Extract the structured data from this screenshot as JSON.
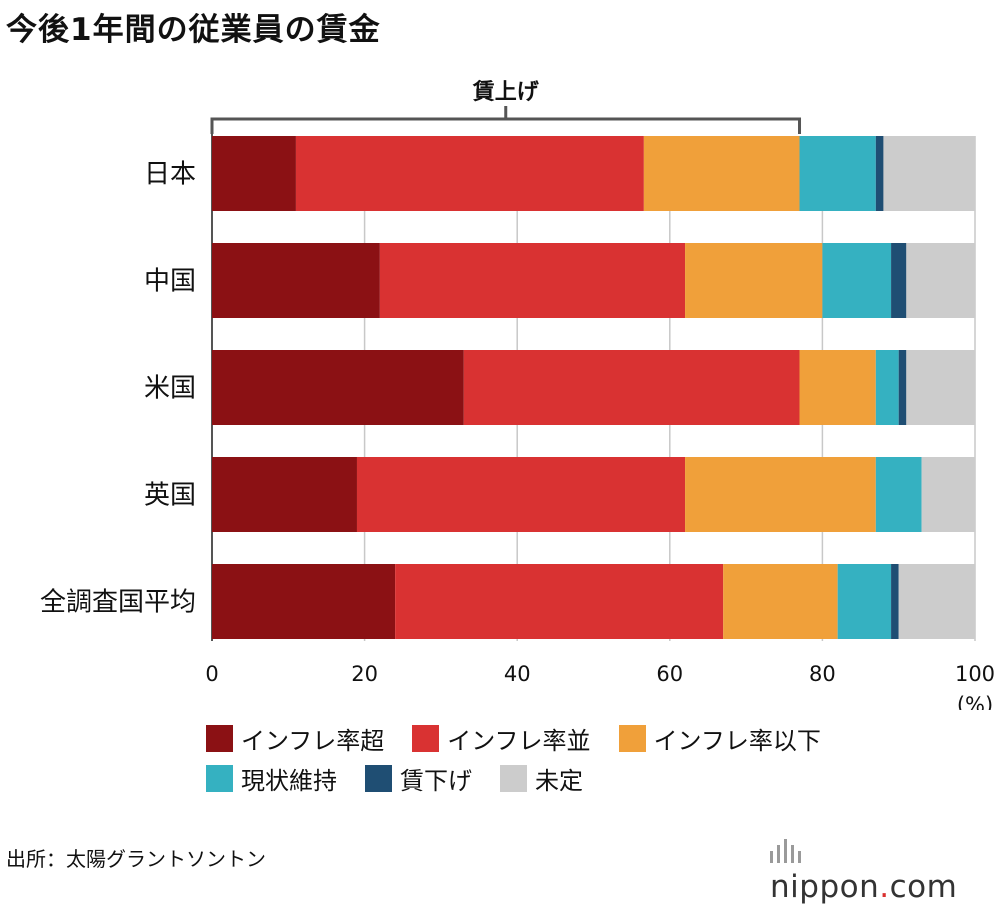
{
  "title": "今後1年間の従業員の賃金",
  "chart_data": {
    "type": "bar",
    "orientation": "horizontal",
    "stacked": true,
    "categories": [
      "日本",
      "中国",
      "米国",
      "英国",
      "全調査国平均"
    ],
    "series": [
      {
        "name": "インフレ率超",
        "color": "#8b1114",
        "values": [
          11,
          22,
          33,
          19,
          24
        ]
      },
      {
        "name": "インフレ率並",
        "color": "#d93232",
        "values": [
          45.6,
          40,
          44,
          43,
          43
        ]
      },
      {
        "name": "インフレ率以下",
        "color": "#f0a03a",
        "values": [
          20.4,
          18,
          10,
          25,
          15
        ]
      },
      {
        "name": "現状維持",
        "color": "#35b1c1",
        "values": [
          10,
          9,
          3,
          6,
          7
        ]
      },
      {
        "name": "賃下げ",
        "color": "#1f4e73",
        "values": [
          1,
          2,
          1,
          0,
          1
        ]
      },
      {
        "name": "未定",
        "color": "#cccccc",
        "values": [
          12,
          9,
          9,
          7,
          10
        ]
      }
    ],
    "xlim": [
      0,
      100
    ],
    "xticks": [
      0,
      20,
      40,
      60,
      80,
      100
    ],
    "xunit": "(%)",
    "grid": true,
    "legend_position": "bottom",
    "annotation": {
      "label": "賃上げ",
      "from": 0,
      "to": 77,
      "category": "日本"
    }
  },
  "source": "出所：太陽グラントソントン",
  "logo": {
    "name": "nippon",
    "dot": ".",
    "suffix": "com"
  }
}
